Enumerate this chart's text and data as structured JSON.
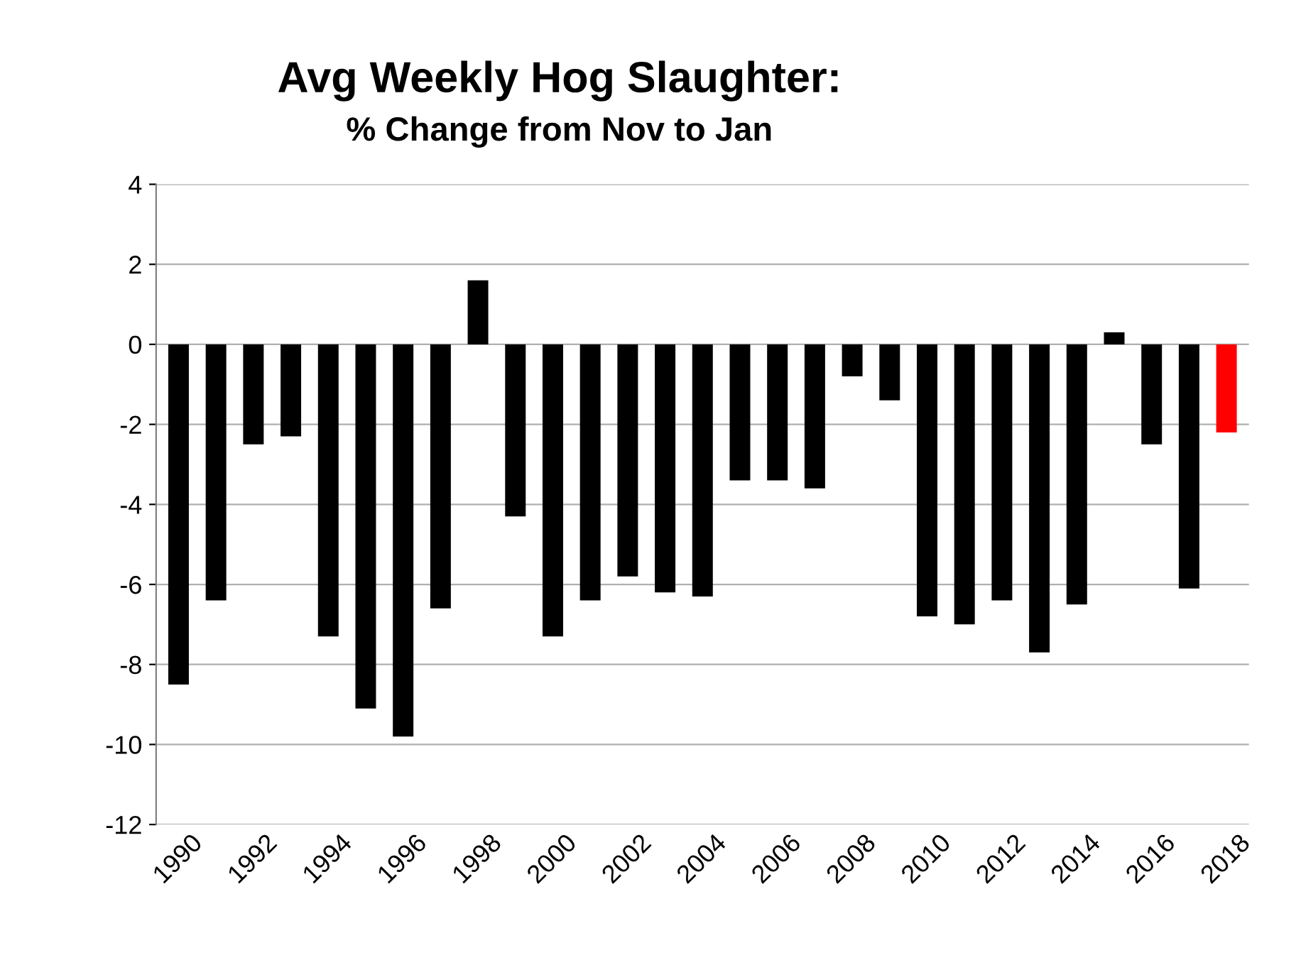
{
  "chart_data": {
    "type": "bar",
    "title": "Avg Weekly Hog Slaughter:",
    "subtitle": "% Change from Nov to Jan",
    "categories": [
      "1990",
      null,
      "1992",
      null,
      "1994",
      null,
      "1996",
      null,
      "1998",
      null,
      "2000",
      null,
      "2002",
      null,
      "2004",
      null,
      "2006",
      null,
      "2008",
      null,
      "2010",
      null,
      "2012",
      null,
      "2014",
      null,
      "2016",
      null,
      "2018"
    ],
    "values": [
      -8.5,
      -6.4,
      -2.5,
      -2.3,
      -7.3,
      -9.1,
      -9.8,
      -6.6,
      1.6,
      -4.3,
      -7.3,
      -6.4,
      -5.8,
      -6.2,
      -6.3,
      -3.4,
      -3.4,
      -3.6,
      -0.8,
      -1.4,
      -6.8,
      -7.0,
      -6.4,
      -7.7,
      -6.5,
      0.3,
      -2.5,
      -6.1,
      -2.2
    ],
    "colors": [
      "#000000",
      "#000000",
      "#000000",
      "#000000",
      "#000000",
      "#000000",
      "#000000",
      "#000000",
      "#000000",
      "#000000",
      "#000000",
      "#000000",
      "#000000",
      "#000000",
      "#000000",
      "#000000",
      "#000000",
      "#000000",
      "#000000",
      "#000000",
      "#000000",
      "#000000",
      "#000000",
      "#000000",
      "#000000",
      "#000000",
      "#000000",
      "#000000",
      "#ff0000"
    ],
    "ylim": [
      -12,
      4
    ],
    "yticks": [
      -12,
      -10,
      -8,
      -6,
      -4,
      -2,
      0,
      2,
      4
    ],
    "grid": "y",
    "legend": false
  }
}
